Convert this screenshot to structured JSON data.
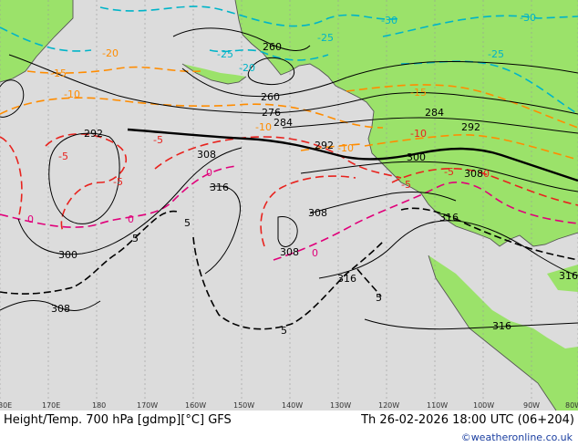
{
  "footer": {
    "title": "Height/Temp. 700 hPa [gdmp][°C] GFS",
    "valid_time": "Th 26-02-2026 18:00 UTC (06+204)",
    "credit": "©weatheronline.co.uk"
  },
  "longitude_labels": [
    "80E",
    "170E",
    "180",
    "170W",
    "160W",
    "150W",
    "140W",
    "130W",
    "120W",
    "110W",
    "100W",
    "90W",
    "80W"
  ],
  "height_labels": [
    "260",
    "260",
    "276",
    "284",
    "292",
    "292",
    "284",
    "292",
    "300",
    "308",
    "316",
    "308",
    "300",
    "308",
    "316",
    "308",
    "316",
    "316",
    "316",
    "308"
  ],
  "temp_labels": {
    "cold": [
      "-30",
      "-30",
      "-25",
      "-25",
      "-20",
      "-25"
    ],
    "mid": [
      "-20",
      "-15",
      "-10",
      "-10",
      "-15",
      "-10"
    ],
    "warm": [
      "-5",
      "-5",
      "-5",
      "-10",
      "-5",
      "0",
      "0",
      "0",
      "-5",
      "0",
      "0",
      "5",
      "5",
      "5",
      "5"
    ]
  },
  "colors": {
    "land": "#9be26a",
    "sea": "#dcdcdc",
    "height_contour": "#000000",
    "temp_cold": "#00b4c8",
    "temp_mid": "#ff8c00",
    "temp_warm": "#e8231e",
    "temp_zero": "#e0007a",
    "credit": "#1a3ea0"
  }
}
